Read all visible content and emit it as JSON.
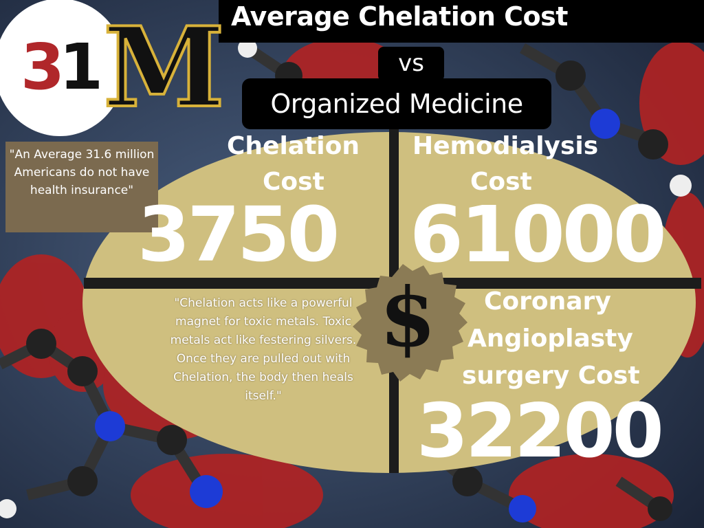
{
  "header": {
    "title": "Average Chelation Cost",
    "vs": "vs",
    "subtitle": "Organized Medicine"
  },
  "logo": {
    "digit_a": "3",
    "digit_b": "1",
    "letter": "M"
  },
  "note": "\"An Average 31.6 million Americans do not have health insurance\"",
  "costs": {
    "chelation": {
      "label_line1": "Chelation",
      "label_line2": "Cost",
      "value": "3750"
    },
    "hemodialysis": {
      "label_line1": "Hemodialysis",
      "label_line2": "Cost",
      "value": "61000"
    },
    "angioplasty": {
      "label_line1": "Coronary",
      "label_line2": "Angioplasty",
      "label_line3": "surgery Cost",
      "value": "32200"
    }
  },
  "quote": "\"Chelation acts like a powerful magnet for toxic metals. Toxic metals act like festering silvers. Once they are pulled out with Chelation, the body then heals itself.\"",
  "center_symbol": "$",
  "colors": {
    "oval": "#cfbf7f",
    "badge": "#8b7b55",
    "accent_red": "#b0272a",
    "gold": "#d8b23a"
  }
}
